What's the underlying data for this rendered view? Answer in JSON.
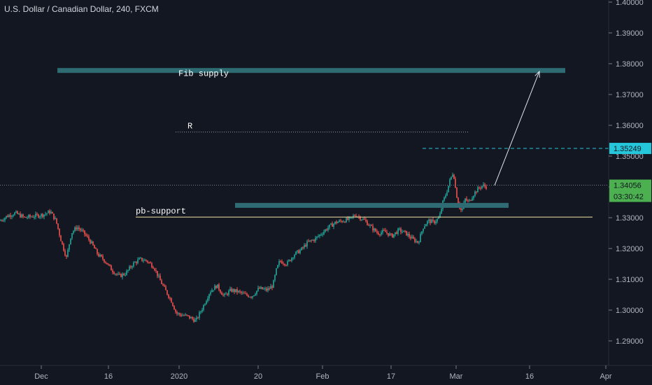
{
  "chart_data": {
    "type": "candlestick",
    "title": "U.S. Dollar / Canadian Dollar, 240, FXCM",
    "ylim": [
      1.285,
      1.4
    ],
    "y_ticks": [
      "1.40000",
      "1.39000",
      "1.38000",
      "1.37000",
      "1.36000",
      "1.35000",
      "1.34000",
      "1.33000",
      "1.32000",
      "1.31000",
      "1.30000",
      "1.29000"
    ],
    "x_ticks": [
      "Dec",
      "16",
      "2020",
      "20",
      "Feb",
      "17",
      "Mar",
      "16",
      "Apr"
    ],
    "price_path": [
      [
        0,
        1.329
      ],
      [
        10,
        1.3305
      ],
      [
        22,
        1.3315
      ],
      [
        35,
        1.33
      ],
      [
        48,
        1.3305
      ],
      [
        62,
        1.331
      ],
      [
        72,
        1.332
      ],
      [
        80,
        1.329
      ],
      [
        88,
        1.322
      ],
      [
        95,
        1.317
      ],
      [
        102,
        1.325
      ],
      [
        110,
        1.327
      ],
      [
        120,
        1.325
      ],
      [
        130,
        1.322
      ],
      [
        140,
        1.318
      ],
      [
        150,
        1.316
      ],
      [
        160,
        1.313
      ],
      [
        170,
        1.311
      ],
      [
        180,
        1.312
      ],
      [
        190,
        1.315
      ],
      [
        200,
        1.3165
      ],
      [
        210,
        1.316
      ],
      [
        220,
        1.314
      ],
      [
        228,
        1.31
      ],
      [
        235,
        1.307
      ],
      [
        245,
        1.303
      ],
      [
        252,
        1.299
      ],
      [
        258,
        1.2985
      ],
      [
        268,
        1.298
      ],
      [
        280,
        1.2965
      ],
      [
        290,
        1.301
      ],
      [
        300,
        1.306
      ],
      [
        310,
        1.308
      ],
      [
        320,
        1.3045
      ],
      [
        330,
        1.3065
      ],
      [
        340,
        1.306
      ],
      [
        350,
        1.305
      ],
      [
        360,
        1.3045
      ],
      [
        370,
        1.307
      ],
      [
        382,
        1.3065
      ],
      [
        390,
        1.308
      ],
      [
        395,
        1.313
      ],
      [
        400,
        1.316
      ],
      [
        410,
        1.315
      ],
      [
        420,
        1.318
      ],
      [
        430,
        1.3195
      ],
      [
        440,
        1.322
      ],
      [
        450,
        1.323
      ],
      [
        460,
        1.325
      ],
      [
        470,
        1.327
      ],
      [
        480,
        1.3285
      ],
      [
        490,
        1.329
      ],
      [
        500,
        1.3295
      ],
      [
        508,
        1.331
      ],
      [
        515,
        1.33
      ],
      [
        522,
        1.329
      ],
      [
        530,
        1.327
      ],
      [
        540,
        1.325
      ],
      [
        550,
        1.3255
      ],
      [
        560,
        1.324
      ],
      [
        570,
        1.326
      ],
      [
        580,
        1.325
      ],
      [
        590,
        1.323
      ],
      [
        598,
        1.322
      ],
      [
        605,
        1.327
      ],
      [
        612,
        1.329
      ],
      [
        620,
        1.3285
      ],
      [
        628,
        1.33
      ],
      [
        633,
        1.335
      ],
      [
        638,
        1.338
      ],
      [
        643,
        1.342
      ],
      [
        648,
        1.345
      ],
      [
        652,
        1.338
      ],
      [
        656,
        1.334
      ],
      [
        660,
        1.332
      ],
      [
        665,
        1.336
      ],
      [
        670,
        1.335
      ],
      [
        678,
        1.338
      ],
      [
        684,
        1.3395
      ],
      [
        690,
        1.3405
      ],
      [
        695,
        1.34
      ]
    ],
    "zones": [
      {
        "label": "Fib supply",
        "price": 1.3778,
        "x_from": 82,
        "x_to": 808
      },
      {
        "label": "",
        "price": 1.334,
        "x_from": 336,
        "x_to": 727
      }
    ],
    "lines": [
      {
        "label": "R",
        "price": 1.3578,
        "style": "dotted",
        "color": "#9598a1",
        "x_from": 251,
        "x_to": 670
      },
      {
        "label": "pb-support",
        "price": 1.3302,
        "style": "solid",
        "color": "#f5e6a3",
        "x_from": 194,
        "x_to": 847
      }
    ],
    "projection": {
      "from": [
        707,
        1.3405
      ],
      "to": [
        771,
        1.3775
      ]
    },
    "dashed_level": {
      "price": 1.35249,
      "label": "1.35249",
      "color": "#26c6da"
    },
    "last_price": {
      "price": 1.34056,
      "label": "1.34056",
      "countdown": "03:30:42",
      "color": "#4caf50"
    },
    "annotations": [
      "Fib supply",
      "R",
      "pb-support"
    ],
    "colors": {
      "up": "#26a69a",
      "down": "#ef5350",
      "background": "#131722",
      "zone": "#2e6b73"
    }
  }
}
